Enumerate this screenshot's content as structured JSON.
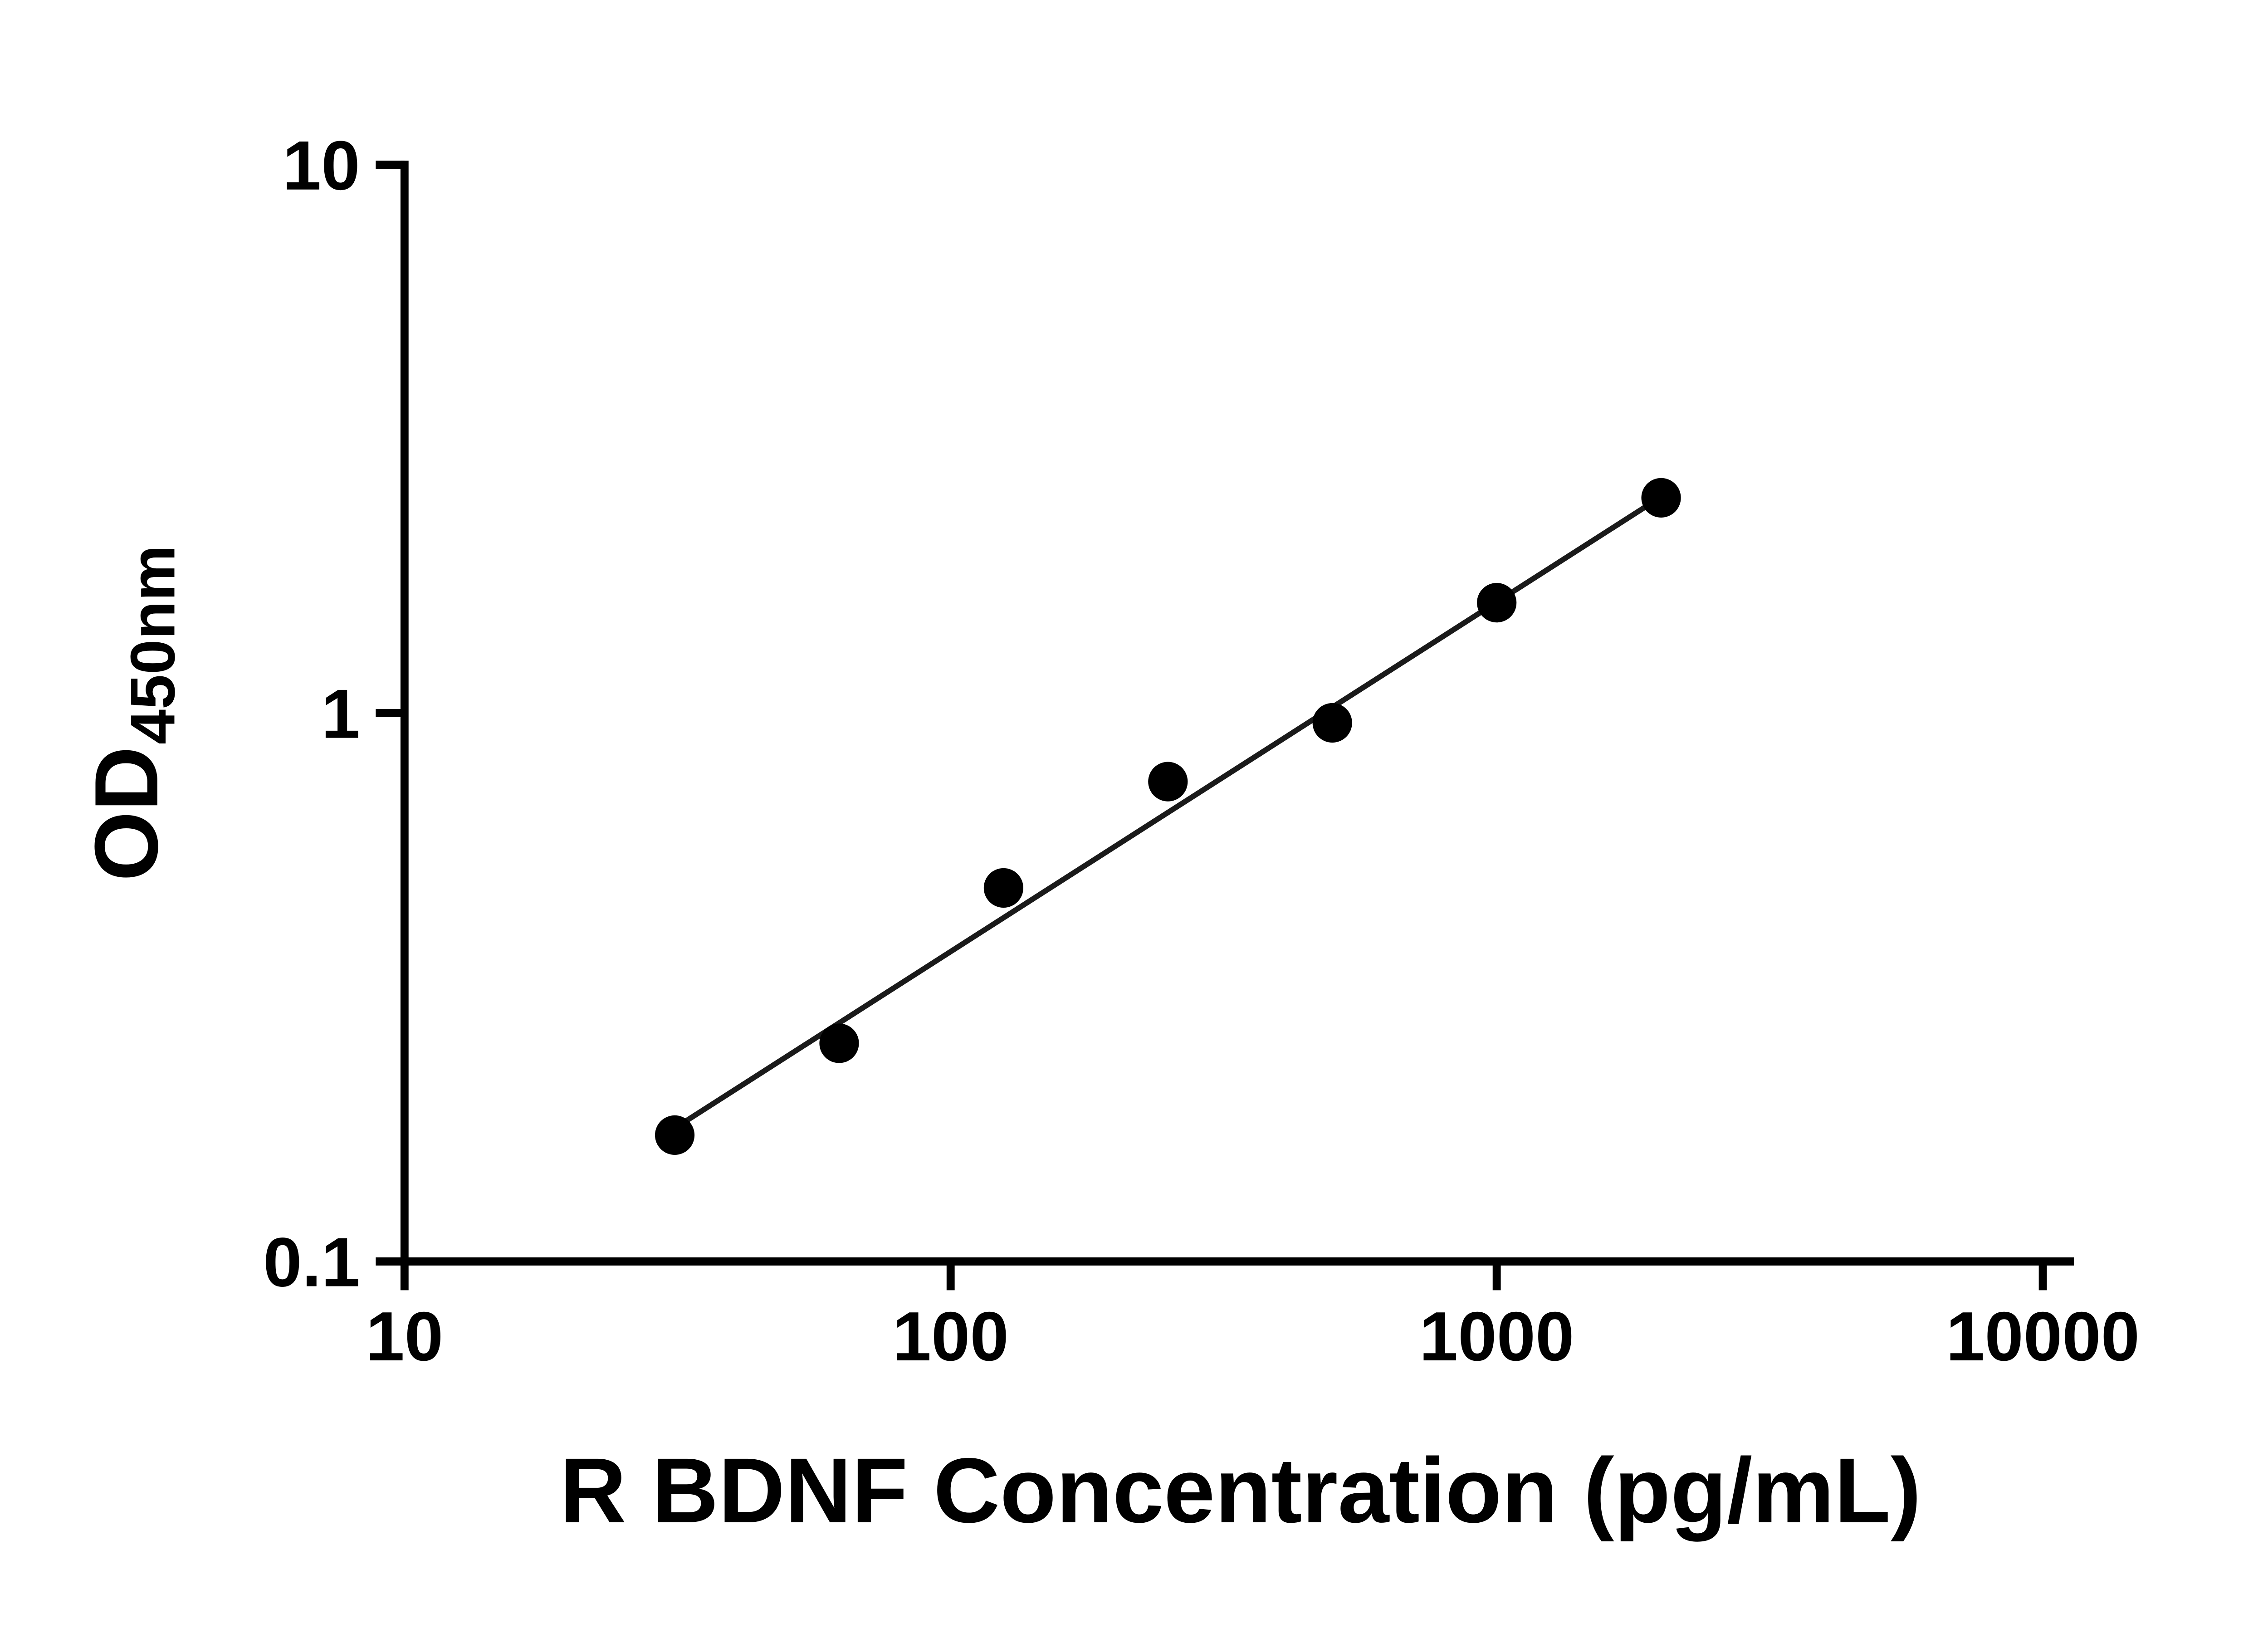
{
  "chart_data": {
    "type": "scatter",
    "title": "",
    "xlabel": "R BDNF Concentration (pg/mL)",
    "ylabel_main": "OD",
    "ylabel_sub": "450nm",
    "x_scale": "log",
    "y_scale": "log",
    "xlim": [
      10,
      10000
    ],
    "ylim": [
      0.1,
      10
    ],
    "grid": false,
    "legend": "none",
    "x_ticks": [
      {
        "value": 10,
        "label": "10"
      },
      {
        "value": 100,
        "label": "100"
      },
      {
        "value": 1000,
        "label": "1000"
      },
      {
        "value": 10000,
        "label": "10000"
      }
    ],
    "y_ticks": [
      {
        "value": 0.1,
        "label": "0.1"
      },
      {
        "value": 1,
        "label": "1"
      },
      {
        "value": 10,
        "label": "10"
      }
    ],
    "points": [
      {
        "x": 31.25,
        "y": 0.17
      },
      {
        "x": 62.5,
        "y": 0.25
      },
      {
        "x": 125,
        "y": 0.48
      },
      {
        "x": 250,
        "y": 0.75
      },
      {
        "x": 500,
        "y": 0.96
      },
      {
        "x": 1000,
        "y": 1.59
      },
      {
        "x": 2000,
        "y": 2.47
      }
    ],
    "fit_line": {
      "x1": 31.25,
      "y1": 0.175,
      "x2": 2000,
      "y2": 2.48
    },
    "colors": {
      "points": "#000000",
      "line": "#1a1a1a",
      "axis": "#000000",
      "text": "#000000",
      "background": "#ffffff"
    }
  }
}
